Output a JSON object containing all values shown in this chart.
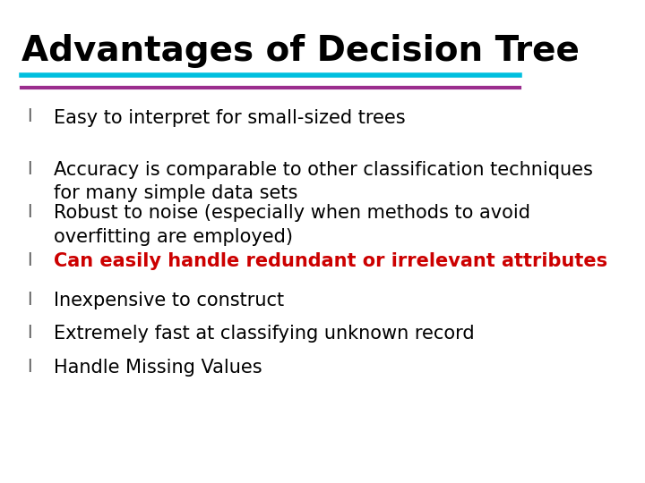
{
  "title": "Advantages of Decision Tree",
  "title_fontsize": 28,
  "title_fontweight": "bold",
  "title_color": "#000000",
  "background_color": "#ffffff",
  "line1_color": "#00BFDF",
  "line2_color": "#9B2D8E",
  "bullet_color": "#555555",
  "bullet_char": "l",
  "bullet_fontsize": 14,
  "items": [
    {
      "text": "Easy to interpret for small-sized trees",
      "color": "#000000",
      "bold": false
    },
    {
      "text": "Accuracy is comparable to other classification techniques\nfor many simple data sets",
      "color": "#000000",
      "bold": false
    },
    {
      "text": "Robust to noise (especially when methods to avoid\noverfitting are employed)",
      "color": "#000000",
      "bold": false
    },
    {
      "text": "Can easily handle redundant or irrelevant attributes",
      "color": "#cc0000",
      "bold": true
    },
    {
      "text": "Inexpensive to construct",
      "color": "#000000",
      "bold": false
    },
    {
      "text": "Extremely fast at classifying unknown record",
      "color": "#000000",
      "bold": false
    },
    {
      "text": "Handle Missing Values",
      "color": "#000000",
      "bold": false
    }
  ],
  "item_fontsize": 15,
  "line_thickness1": 4,
  "line_thickness2": 3
}
